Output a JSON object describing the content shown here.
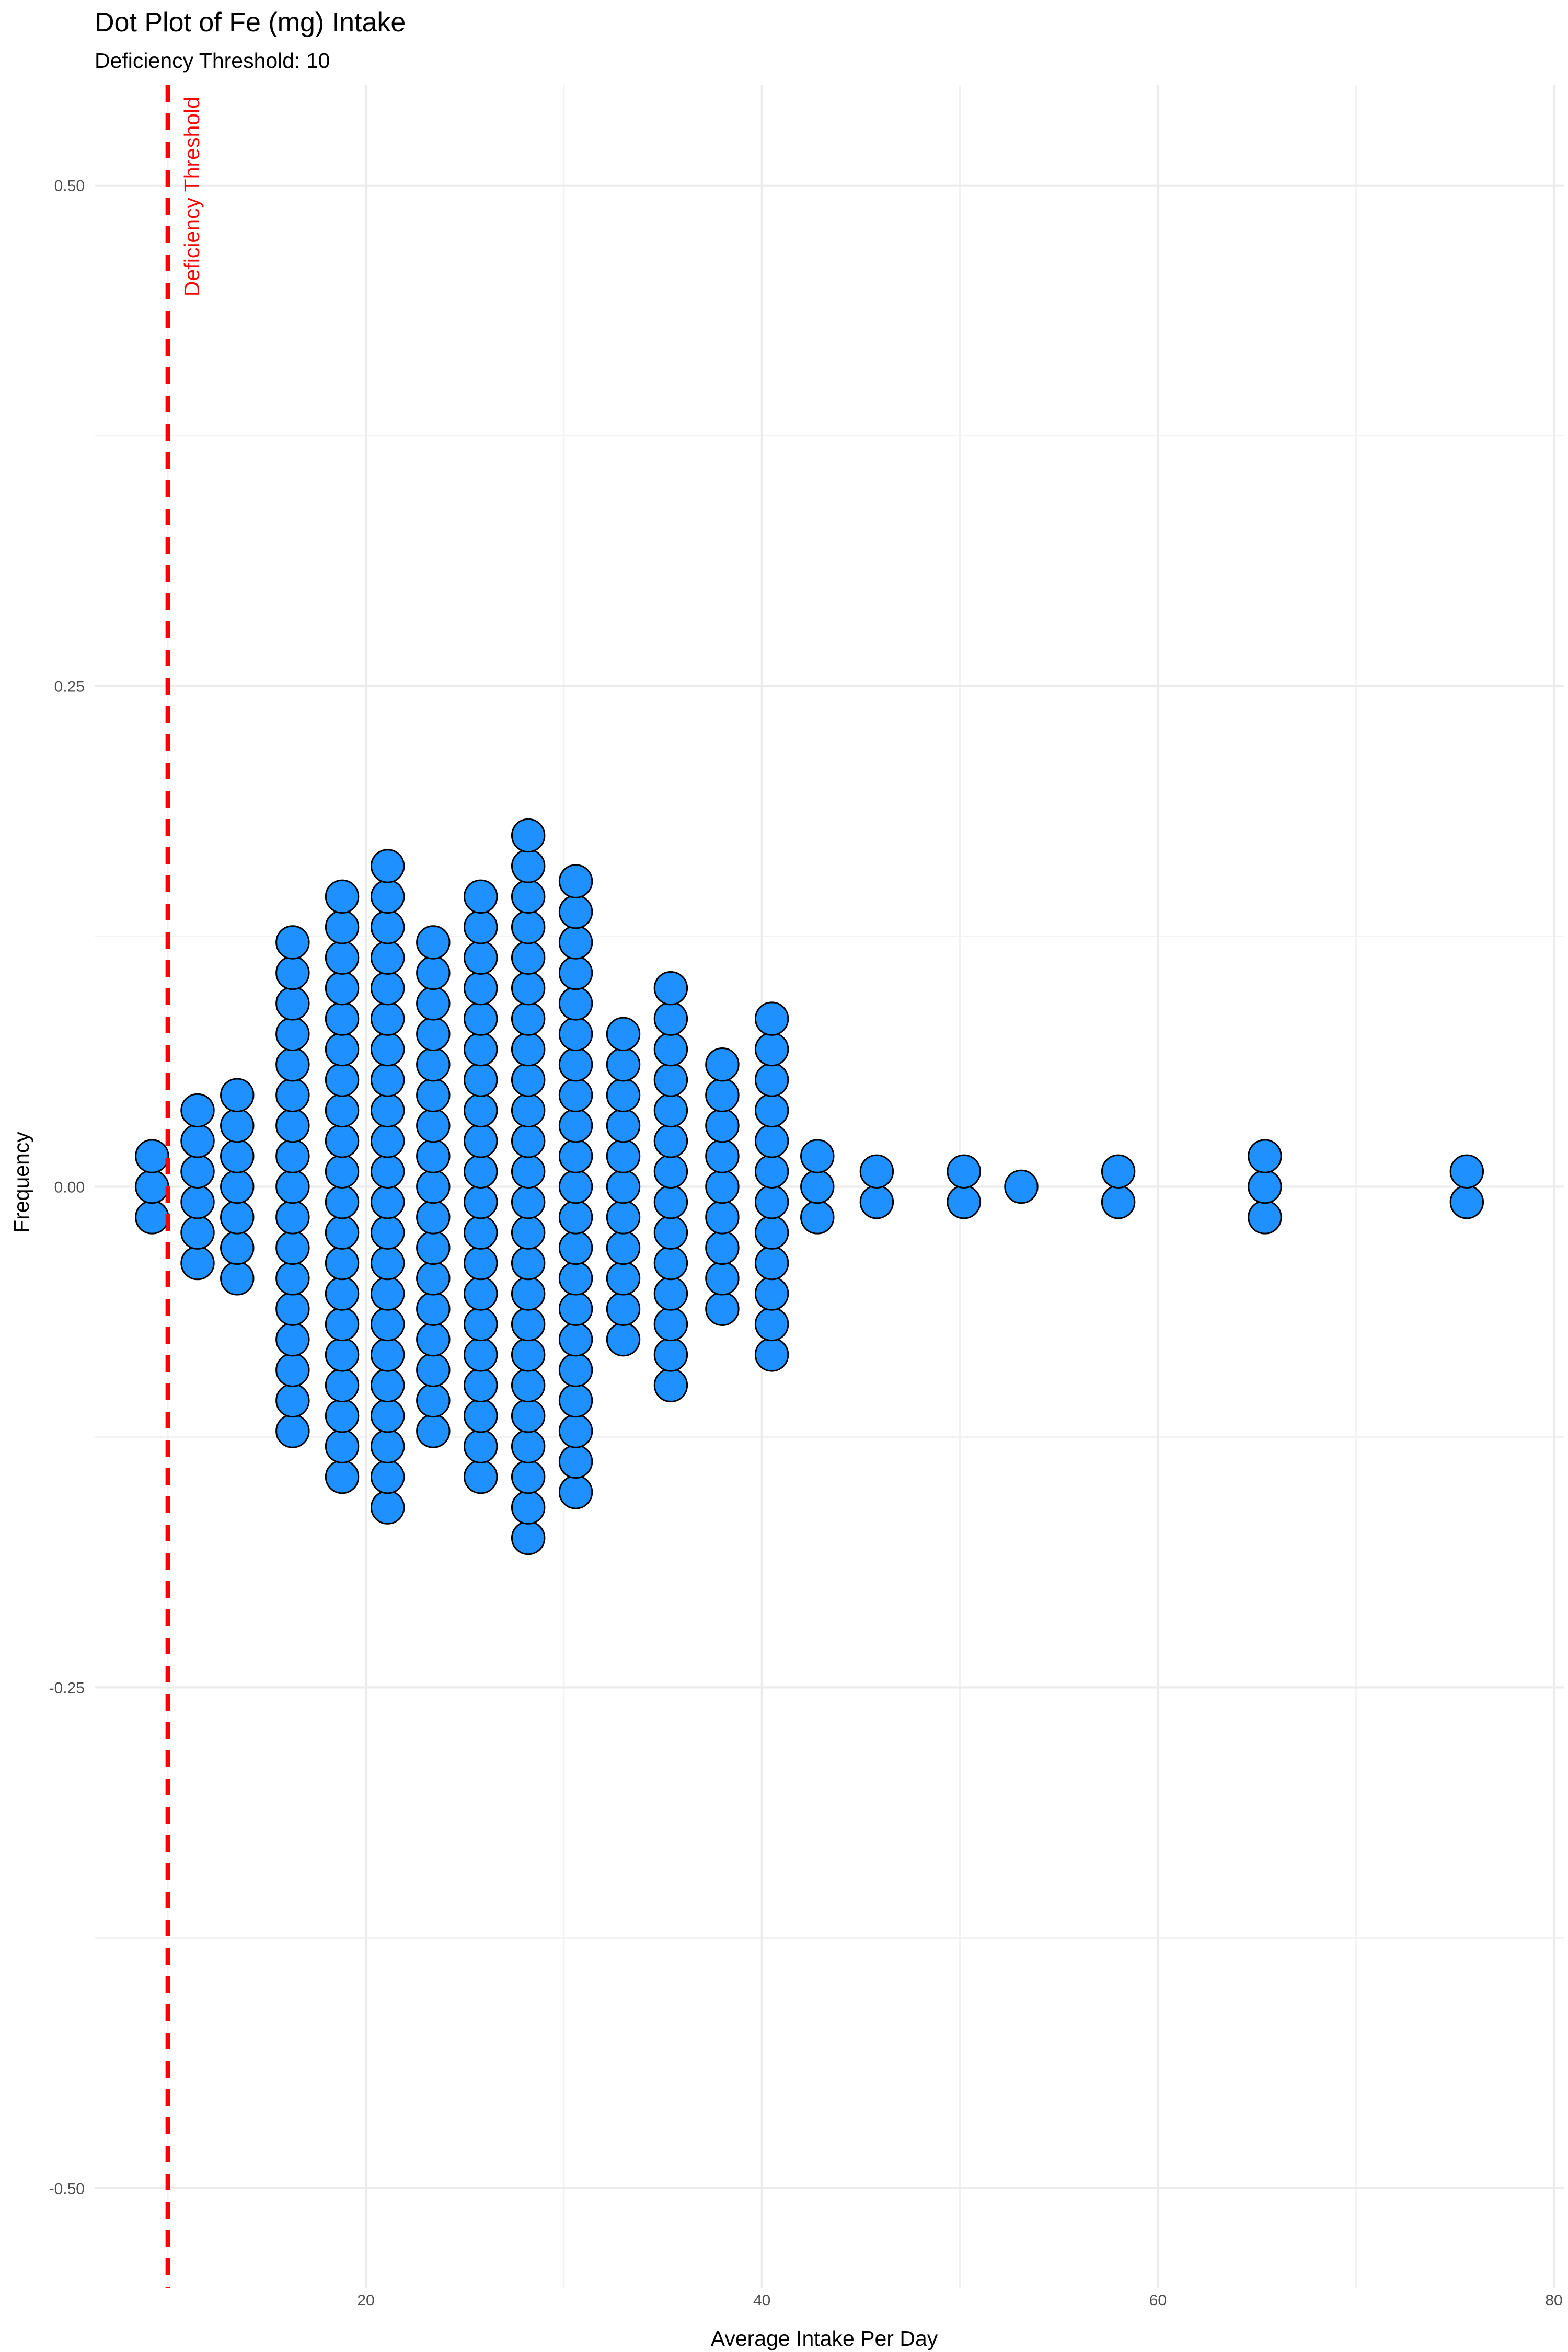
{
  "chart_data": {
    "type": "dot",
    "title": "Dot Plot of Fe (mg) Intake",
    "subtitle": "Deficiency Threshold: 10",
    "xlabel": "Average Intake Per Day",
    "ylabel": "Frequency",
    "xlim": [
      6.3,
      80.5
    ],
    "ylim": [
      -0.55,
      0.55
    ],
    "x_ticks": [
      {
        "value": 20,
        "label": "20"
      },
      {
        "value": 40,
        "label": "40"
      },
      {
        "value": 60,
        "label": "60"
      },
      {
        "value": 80,
        "label": "80"
      }
    ],
    "y_ticks": [
      {
        "value": 0.5,
        "label": "0.50"
      },
      {
        "value": 0.25,
        "label": "0.25"
      },
      {
        "value": 0,
        "label": "0.00"
      },
      {
        "value": -0.25,
        "label": "-0.25"
      },
      {
        "value": -0.5,
        "label": "-0.50"
      }
    ],
    "grid": true,
    "dot_fill": "#1E90FF",
    "dot_stroke": "#000000",
    "threshold": {
      "x": 10,
      "label": "Deficiency Threshold",
      "color": "#FF0000",
      "linestyle": "dashed"
    },
    "bins": [
      {
        "x": 9.2,
        "count": 3
      },
      {
        "x": 11.5,
        "count": 6
      },
      {
        "x": 13.5,
        "count": 7
      },
      {
        "x": 16.3,
        "count": 17
      },
      {
        "x": 18.8,
        "count": 20
      },
      {
        "x": 21.1,
        "count": 22
      },
      {
        "x": 23.4,
        "count": 17
      },
      {
        "x": 25.8,
        "count": 20
      },
      {
        "x": 28.2,
        "count": 24
      },
      {
        "x": 30.6,
        "count": 21
      },
      {
        "x": 33.0,
        "count": 11
      },
      {
        "x": 35.4,
        "count": 14
      },
      {
        "x": 38.0,
        "count": 9
      },
      {
        "x": 40.5,
        "count": 12
      },
      {
        "x": 42.8,
        "count": 3
      },
      {
        "x": 45.8,
        "count": 2
      },
      {
        "x": 50.2,
        "count": 2
      },
      {
        "x": 53.1,
        "count": 1
      },
      {
        "x": 58.0,
        "count": 2
      },
      {
        "x": 65.4,
        "count": 3
      },
      {
        "x": 75.6,
        "count": 2
      }
    ]
  }
}
